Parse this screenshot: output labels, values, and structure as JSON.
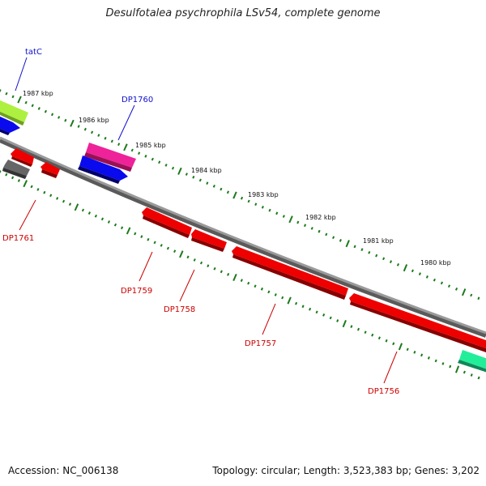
{
  "title": "Desulfotalea psychrophila LSv54, complete genome",
  "footer": {
    "accession": "Accession: NC_006138",
    "topology": "Topology: circular; Length: 3,523,383 bp; Genes: 3,202"
  },
  "ruler": {
    "unit_suffix": " kbp",
    "ticks": [
      "1987 kbp",
      "1986 kbp",
      "1985 kbp",
      "1984 kbp",
      "1983 kbp",
      "1982 kbp",
      "1981 kbp",
      "1980 kbp"
    ]
  },
  "genes": [
    {
      "name": "tatC",
      "strand": "+",
      "color": "#1010cc"
    },
    {
      "name": "DP1760",
      "strand": "+",
      "color": "#1010cc"
    },
    {
      "name": "DP1761",
      "strand": "-",
      "color": "#cc0000"
    },
    {
      "name": "DP1759",
      "strand": "-",
      "color": "#cc0000"
    },
    {
      "name": "DP1758",
      "strand": "-",
      "color": "#cc0000"
    },
    {
      "name": "DP1757",
      "strand": "-",
      "color": "#cc0000"
    },
    {
      "name": "DP1756",
      "strand": "-",
      "color": "#cc0000"
    }
  ],
  "colors": {
    "backbone": "#8a8a8a",
    "tick": "#1a7a1a",
    "cds_red": "#ee0000",
    "cds_blue": "#0a0aee",
    "cds_green": "#aef040",
    "cds_pink": "#ee2299",
    "cds_gray": "#666666",
    "cds_teal": "#22ee99"
  }
}
